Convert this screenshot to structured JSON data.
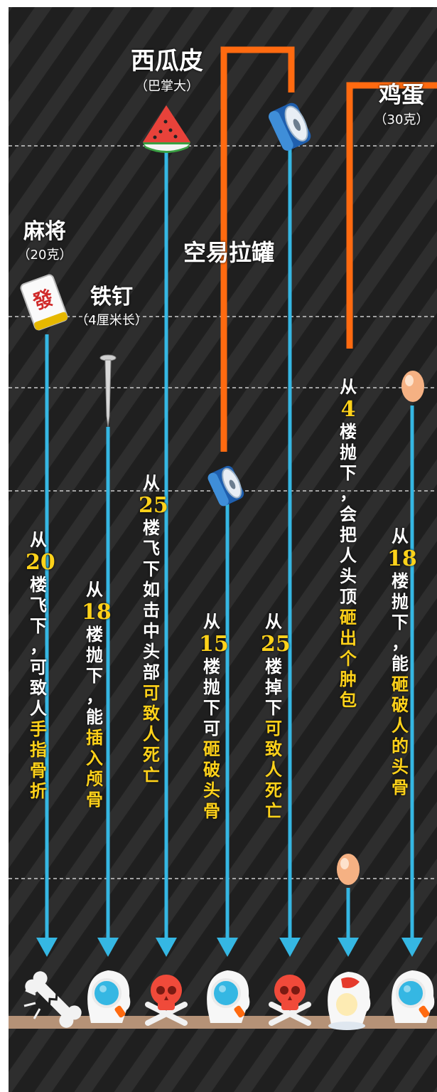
{
  "colors": {
    "background": "#1f1f1f",
    "stripe": "#2e2e2e",
    "arrow": "#35b7e3",
    "bracket": "#ff6a10",
    "highlight": "#ffd21a",
    "text": "#ffffff",
    "floor": "#b59277"
  },
  "items": {
    "mahjong": {
      "name": "麻将",
      "sub": "（20克）",
      "icon": "mahjong-tile-icon",
      "result_icon": "broken-bone-icon",
      "parts": [
        {
          "t": "从",
          "c": "w"
        },
        {
          "t": "20",
          "c": "y"
        },
        {
          "t": "楼飞下，可致人",
          "c": "w"
        },
        {
          "t": "手指骨折",
          "c": "y"
        }
      ]
    },
    "nail": {
      "name": "铁钉",
      "sub": "（4厘米长）",
      "icon": "nail-icon",
      "result_icon": "skull-scan-icon",
      "parts": [
        {
          "t": "从",
          "c": "w"
        },
        {
          "t": "18",
          "c": "y"
        },
        {
          "t": "楼抛下，能",
          "c": "w"
        },
        {
          "t": "插入颅骨",
          "c": "y"
        }
      ]
    },
    "watermelon": {
      "name": "西瓜皮",
      "sub": "（巴掌大）",
      "icon": "watermelon-slice-icon",
      "result_icon": "skull-crossbones-icon",
      "parts": [
        {
          "t": "从",
          "c": "w"
        },
        {
          "t": "25",
          "c": "y"
        },
        {
          "t": "楼飞下如击中头部",
          "c": "w"
        },
        {
          "t": "可致人死亡",
          "c": "y"
        }
      ]
    },
    "can": {
      "name": "空易拉罐",
      "icon": "soda-can-icon",
      "drop_15": {
        "result_icon": "skull-scan-icon",
        "parts": [
          {
            "t": "从",
            "c": "w"
          },
          {
            "t": "15",
            "c": "y"
          },
          {
            "t": "楼抛下可",
            "c": "w"
          },
          {
            "t": "砸破头骨",
            "c": "y"
          }
        ]
      },
      "drop_25": {
        "result_icon": "skull-crossbones-icon",
        "parts": [
          {
            "t": "从",
            "c": "w"
          },
          {
            "t": "25",
            "c": "y"
          },
          {
            "t": "楼掉下",
            "c": "w"
          },
          {
            "t": "可致人死亡",
            "c": "y"
          }
        ]
      }
    },
    "egg": {
      "name": "鸡蛋",
      "sub": "（30克）",
      "icon": "egg-icon",
      "drop_4": {
        "result_icon": "injured-head-icon",
        "parts": [
          {
            "t": "从",
            "c": "w"
          },
          {
            "t": "4",
            "c": "y"
          },
          {
            "t": "楼抛下，会把人头顶",
            "c": "w"
          },
          {
            "t": "砸出个肿包",
            "c": "y"
          }
        ]
      },
      "drop_18": {
        "result_icon": "skull-scan-icon",
        "parts": [
          {
            "t": "从",
            "c": "w"
          },
          {
            "t": "18",
            "c": "y"
          },
          {
            "t": "楼抛下，能",
            "c": "w"
          },
          {
            "t": "砸破人的头骨",
            "c": "y"
          }
        ]
      }
    }
  }
}
